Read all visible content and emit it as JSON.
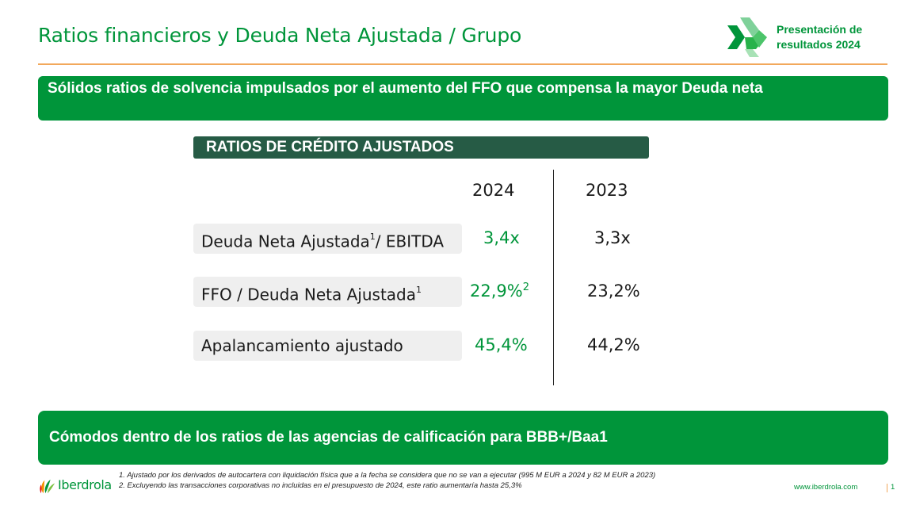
{
  "header": {
    "title": "Ratios financieros y Deuda Neta Ajustada / Grupo",
    "brand_line1": "Presentación de",
    "brand_line2": "resultados 2024"
  },
  "banner_top": "Sólidos ratios de solvencia impulsados por el aumento del FFO que compensa la mayor Deuda neta",
  "section_title": "RATIOS DE CRÉDITO AJUSTADOS",
  "years": [
    "2024",
    "2023"
  ],
  "rows": [
    {
      "label": "Deuda Neta Ajustada",
      "label_sup": "1",
      "label_suffix": "/ EBITDA",
      "v2024": "3,4x",
      "v2024_sup": "",
      "v2023": "3,3x"
    },
    {
      "label": "FFO / Deuda Neta Ajustada",
      "label_sup": "1",
      "label_suffix": "",
      "v2024": "22,9%",
      "v2024_sup": "2",
      "v2023": "23,2%"
    },
    {
      "label": "Apalancamiento ajustado",
      "label_sup": "",
      "label_suffix": "",
      "v2024": "45,4%",
      "v2024_sup": "",
      "v2023": "44,2%"
    }
  ],
  "banner_bottom": "Cómodos dentro de los ratios de las agencias de calificación para  BBB+/Baa1",
  "footnotes": [
    "1.  Ajustado por los derivados de autocartera con liquidación física que a la fecha se considera que no se van a ejecutar (995 M EUR a 2024 y 82 M EUR a 2023)",
    "2. Excluyendo las transacciones corporativas no incluidas en el presupuesto de 2024, este ratio aumentaría hasta 25,3%"
  ],
  "footer": {
    "logo_text": "Iberdrola",
    "website": "www.iberdrola.com",
    "page": "1"
  },
  "colors": {
    "green": "#00953a",
    "dark_green": "#265b45",
    "orange_rule": "#f2a85b"
  },
  "icons": {
    "brand": "double-chevron-icon",
    "logo": "iberdrola-leaves-icon"
  }
}
